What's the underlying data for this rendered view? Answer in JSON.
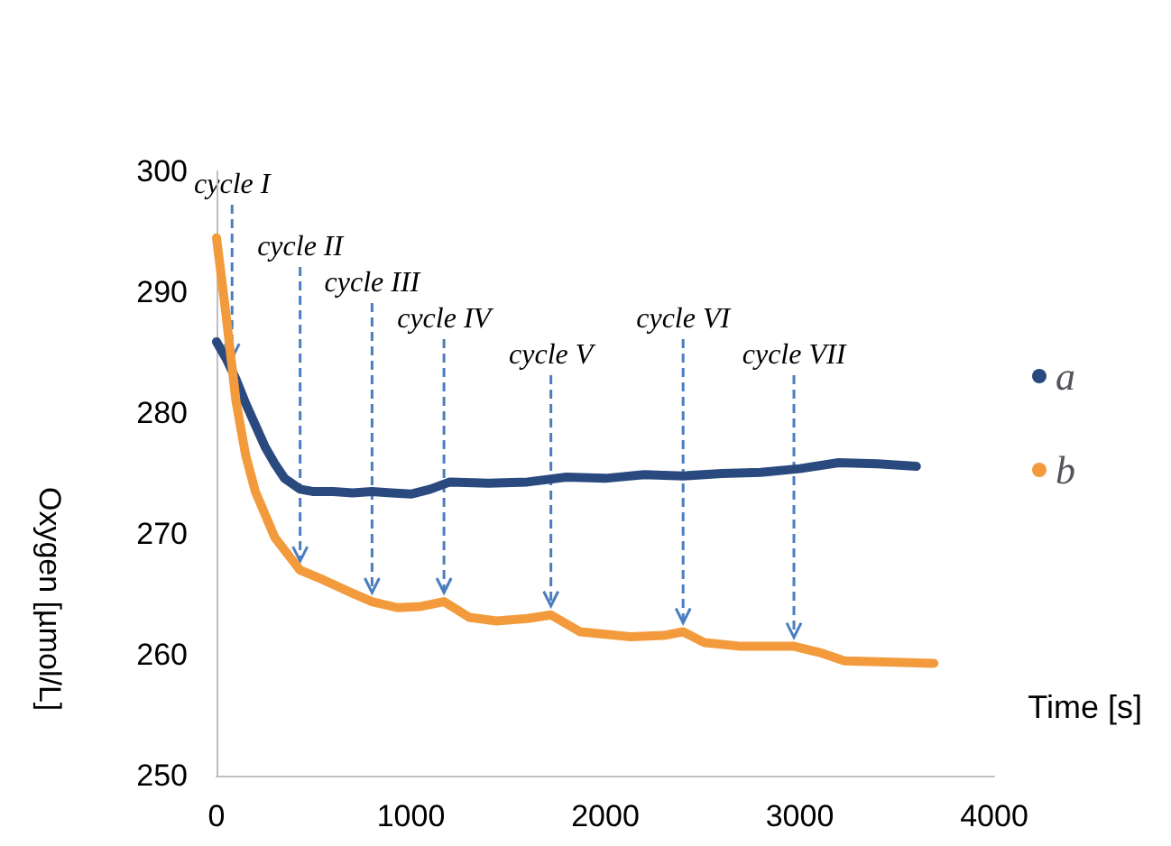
{
  "chart_data": {
    "type": "line",
    "xlabel": "Time [s]",
    "ylabel": "Oxygen [µmol/L]",
    "xlim": [
      0,
      4000
    ],
    "xticks": [
      0,
      1000,
      2000,
      3000,
      4000
    ],
    "ylim": [
      250,
      300
    ],
    "yticks": [
      250,
      260,
      270,
      280,
      290,
      300
    ],
    "grid": false,
    "legend": "right",
    "marker": "none",
    "line_style": "solid",
    "series": [
      {
        "name": "a",
        "color": "#2a4a7f",
        "x": [
          0,
          50,
          100,
          150,
          200,
          250,
          300,
          350,
          430,
          500,
          600,
          700,
          800,
          900,
          1000,
          1100,
          1200,
          1400,
          1600,
          1800,
          2000,
          2200,
          2400,
          2600,
          2800,
          3000,
          3200,
          3400,
          3600
        ],
        "values": [
          285.9,
          284.5,
          282.8,
          280.8,
          279,
          277.2,
          275.8,
          274.6,
          273.7,
          273.5,
          273.5,
          273.4,
          273.5,
          273.4,
          273.3,
          273.7,
          274.3,
          274.2,
          274.3,
          274.7,
          274.6,
          274.9,
          274.8,
          275,
          275.1,
          275.4,
          275.9,
          275.8,
          275.6
        ]
      },
      {
        "name": "b",
        "color": "#f39b3c",
        "x": [
          0,
          50,
          100,
          150,
          200,
          300,
          430,
          550,
          684,
          800,
          930,
          1050,
          1170,
          1300,
          1440,
          1600,
          1720,
          1870,
          2130,
          2300,
          2400,
          2510,
          2700,
          2970,
          3100,
          3230,
          3450,
          3690
        ],
        "values": [
          294.5,
          288,
          281,
          276.5,
          273.5,
          269.7,
          267,
          266.2,
          265.2,
          264.4,
          263.9,
          264,
          264.4,
          263.1,
          262.8,
          263,
          263.3,
          261.9,
          261.5,
          261.6,
          261.9,
          261,
          260.7,
          260.7,
          260.2,
          259.5,
          259.4,
          259.3
        ]
      }
    ],
    "annotations": [
      {
        "text": "cycle I",
        "x": 80,
        "y": 283.8
      },
      {
        "text": "cycle II",
        "x": 430,
        "y": 267
      },
      {
        "text": "cycle III",
        "x": 800,
        "y": 264.4
      },
      {
        "text": "cycle IV",
        "x": 1170,
        "y": 264.4
      },
      {
        "text": "cycle V",
        "x": 1720,
        "y": 263.3
      },
      {
        "text": "cycle VI",
        "x": 2400,
        "y": 261.9
      },
      {
        "text": "cycle VII",
        "x": 2970,
        "y": 260.7
      }
    ]
  }
}
